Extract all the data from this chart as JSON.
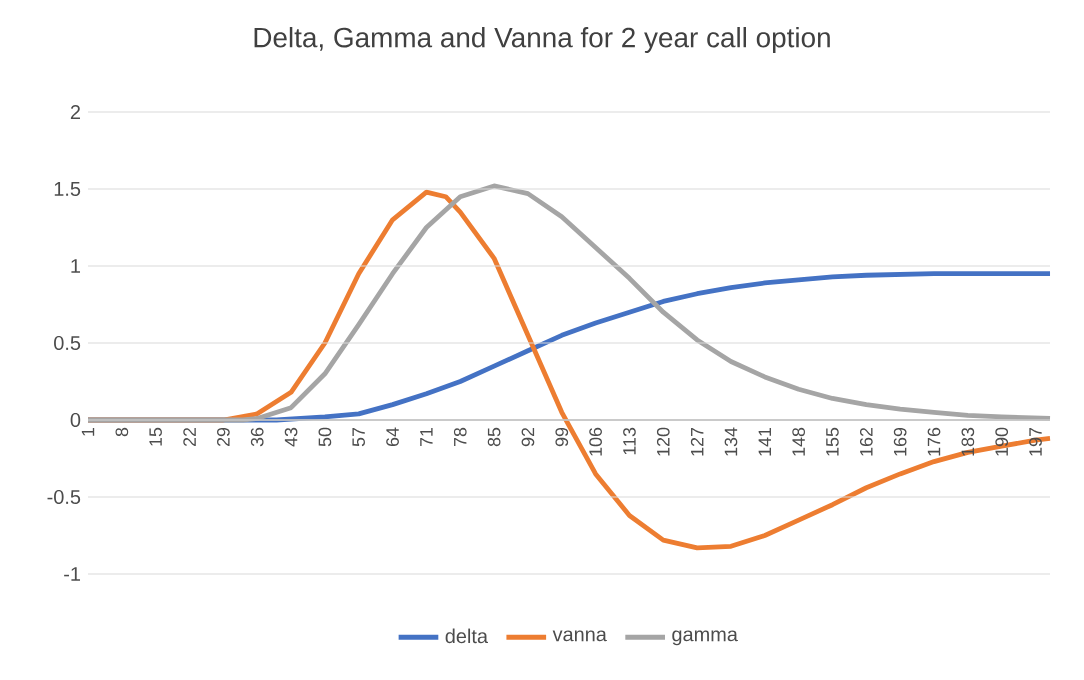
{
  "chart_data": {
    "type": "line",
    "title": "Delta, Gamma and Vanna for 2 year call option",
    "xlim": [
      1,
      200
    ],
    "xticks": [
      1,
      8,
      15,
      22,
      29,
      36,
      43,
      50,
      57,
      64,
      71,
      78,
      85,
      92,
      99,
      106,
      113,
      120,
      127,
      134,
      141,
      148,
      155,
      162,
      169,
      176,
      183,
      190,
      197
    ],
    "ylim": [
      -1,
      2
    ],
    "yticks": [
      -1,
      -0.5,
      0,
      0.5,
      1,
      1.5,
      2
    ],
    "grid": "y",
    "legend": "bottom",
    "series": [
      {
        "name": "delta",
        "color": "#4472c4",
        "x": [
          1,
          20,
          40,
          50,
          57,
          64,
          71,
          78,
          85,
          92,
          99,
          106,
          113,
          120,
          127,
          134,
          141,
          148,
          155,
          162,
          176,
          200
        ],
        "values": [
          0,
          0,
          0,
          0.02,
          0.04,
          0.1,
          0.17,
          0.25,
          0.35,
          0.45,
          0.55,
          0.63,
          0.7,
          0.77,
          0.82,
          0.86,
          0.89,
          0.91,
          0.93,
          0.94,
          0.95,
          0.95
        ]
      },
      {
        "name": "vanna",
        "color": "#ed7d31",
        "x": [
          1,
          29,
          36,
          43,
          50,
          57,
          64,
          71,
          75,
          78,
          85,
          92,
          99,
          106,
          113,
          120,
          127,
          134,
          141,
          148,
          155,
          162,
          169,
          176,
          183,
          190,
          197,
          200
        ],
        "values": [
          0,
          0,
          0.04,
          0.18,
          0.5,
          0.95,
          1.3,
          1.48,
          1.45,
          1.35,
          1.05,
          0.55,
          0.05,
          -0.35,
          -0.62,
          -0.78,
          -0.83,
          -0.82,
          -0.75,
          -0.65,
          -0.55,
          -0.44,
          -0.35,
          -0.27,
          -0.21,
          -0.17,
          -0.13,
          -0.12
        ]
      },
      {
        "name": "gamma",
        "color": "#a5a5a5",
        "x": [
          1,
          33,
          36,
          43,
          50,
          57,
          64,
          71,
          78,
          85,
          92,
          99,
          106,
          113,
          120,
          127,
          134,
          141,
          148,
          155,
          162,
          169,
          176,
          183,
          190,
          200
        ],
        "values": [
          0,
          0,
          0.01,
          0.08,
          0.3,
          0.62,
          0.95,
          1.25,
          1.45,
          1.52,
          1.47,
          1.32,
          1.12,
          0.92,
          0.7,
          0.52,
          0.38,
          0.28,
          0.2,
          0.14,
          0.1,
          0.07,
          0.05,
          0.03,
          0.02,
          0.01
        ]
      }
    ]
  }
}
